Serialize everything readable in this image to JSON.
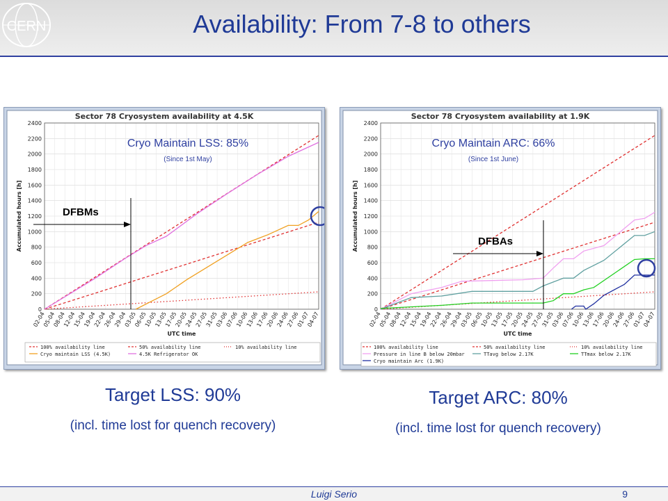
{
  "slide": {
    "title": "Availability: From 7-8 to others",
    "logo_text": "CERN",
    "target_left": "Target LSS:  90%",
    "target_left_sub": "(incl. time lost for quench recovery)",
    "target_right": "Target ARC:  80%",
    "target_right_sub": "(incl. time lost for quench recovery)",
    "footer_author": "Luigi Serio",
    "footer_page": "9"
  },
  "overlays": {
    "left_main": "Cryo Maintain LSS: 85%",
    "left_sub": "(Since 1st May)",
    "left_marker": "DFBMs",
    "right_main": "Cryo Maintain ARC: 66%",
    "right_sub": "(Since 1st June)",
    "right_marker": "DFBAs"
  },
  "chart_data": [
    {
      "type": "line",
      "title": "Sector 78 Cryosystem availability at 4.5K",
      "xlabel": "UTC time",
      "ylabel": "Accumulated hours [h]",
      "ylim": [
        0,
        2400
      ],
      "yticks": [
        0,
        200,
        400,
        600,
        800,
        1000,
        1200,
        1400,
        1600,
        1800,
        2000,
        2200,
        2400
      ],
      "x_labels": [
        "02-04",
        "05-04",
        "08-04",
        "12-04",
        "15-04",
        "19-04",
        "22-04",
        "26-04",
        "29-04",
        "03-05",
        "06-05",
        "10-05",
        "13-05",
        "17-05",
        "20-05",
        "24-05",
        "27-05",
        "31-05",
        "03-06",
        "07-06",
        "10-06",
        "13-06",
        "17-06",
        "20-06",
        "24-06",
        "27-06",
        "01-07",
        "04-07"
      ],
      "grid": true,
      "legend_position": "bottom",
      "series": [
        {
          "name": "100% availability line",
          "color": "#e03030",
          "style": "dashed",
          "x": [
            0,
            27
          ],
          "y": [
            0,
            2240
          ]
        },
        {
          "name": "50% availability line",
          "color": "#e03030",
          "style": "dashed",
          "x": [
            0,
            27
          ],
          "y": [
            0,
            1120
          ]
        },
        {
          "name": "10% availability line",
          "color": "#e03030",
          "style": "dotted",
          "x": [
            0,
            27
          ],
          "y": [
            0,
            224
          ]
        },
        {
          "name": "Cryo maintain LSS (4.5K)",
          "color": "#f0a020",
          "style": "solid",
          "x": [
            9,
            10.5,
            12,
            14,
            16,
            18,
            20,
            22,
            24,
            25,
            26,
            27
          ],
          "y": [
            0,
            100,
            200,
            380,
            540,
            700,
            860,
            960,
            1080,
            1080,
            1150,
            1260
          ]
        },
        {
          "name": "4.5K Refrigerator OK",
          "color": "#e070e0",
          "style": "solid",
          "x": [
            0,
            5,
            8,
            10,
            12,
            15,
            18,
            21,
            24,
            27
          ],
          "y": [
            0,
            400,
            660,
            820,
            940,
            1230,
            1490,
            1740,
            1970,
            2150
          ]
        }
      ]
    },
    {
      "type": "line",
      "title": "Sector 78 Cryosystem availability at 1.9K",
      "xlabel": "UTC time",
      "ylabel": "Accumulated hours [h]",
      "ylim": [
        0,
        2400
      ],
      "yticks": [
        0,
        200,
        400,
        600,
        800,
        1000,
        1200,
        1400,
        1600,
        1800,
        2000,
        2200,
        2400
      ],
      "x_labels": [
        "02-04",
        "05-04",
        "08-04",
        "12-04",
        "15-04",
        "19-04",
        "22-04",
        "26-04",
        "29-04",
        "03-05",
        "06-05",
        "10-05",
        "13-05",
        "17-05",
        "20-05",
        "24-05",
        "27-05",
        "31-05",
        "03-06",
        "07-06",
        "10-06",
        "13-06",
        "17-06",
        "20-06",
        "24-06",
        "27-06",
        "01-07",
        "04-07"
      ],
      "grid": true,
      "legend_position": "bottom",
      "series": [
        {
          "name": "100% availability line",
          "color": "#e03030",
          "style": "dashed",
          "x": [
            0,
            27
          ],
          "y": [
            0,
            2240
          ]
        },
        {
          "name": "50% availability line",
          "color": "#e03030",
          "style": "dashed",
          "x": [
            0,
            27
          ],
          "y": [
            0,
            1120
          ]
        },
        {
          "name": "10% availability line",
          "color": "#e03030",
          "style": "dotted",
          "x": [
            0,
            27
          ],
          "y": [
            0,
            224
          ]
        },
        {
          "name": "Pressure in line B below 20mbar",
          "color": "#f0a0f0",
          "style": "solid",
          "x": [
            0,
            3,
            6,
            8,
            11,
            14,
            16,
            17,
            18,
            19,
            20,
            22,
            25,
            26,
            27
          ],
          "y": [
            0,
            200,
            280,
            360,
            370,
            380,
            400,
            530,
            650,
            650,
            750,
            820,
            1150,
            1170,
            1250
          ]
        },
        {
          "name": "TTavg below 2.17K",
          "color": "#60a0a0",
          "style": "solid",
          "x": [
            0,
            3,
            6,
            9,
            15,
            16,
            18,
            19,
            20,
            22,
            25,
            26,
            27
          ],
          "y": [
            0,
            150,
            170,
            230,
            230,
            300,
            400,
            400,
            500,
            630,
            950,
            950,
            1000
          ]
        },
        {
          "name": "TTmax below 2.17K",
          "color": "#20d020",
          "style": "solid",
          "x": [
            0,
            3,
            6,
            9,
            16,
            17,
            18,
            19,
            20,
            21,
            25,
            26,
            27
          ],
          "y": [
            10,
            30,
            50,
            80,
            80,
            110,
            200,
            200,
            250,
            280,
            640,
            650,
            650
          ]
        },
        {
          "name": "Cryo maintain Arc (1.9K)",
          "color": "#2030a0",
          "style": "solid",
          "x": [
            18.8,
            19.2,
            20,
            20.2,
            21,
            22,
            24,
            25,
            26,
            27
          ],
          "y": [
            0,
            40,
            40,
            0,
            70,
            180,
            320,
            440,
            440,
            440
          ]
        }
      ]
    }
  ]
}
